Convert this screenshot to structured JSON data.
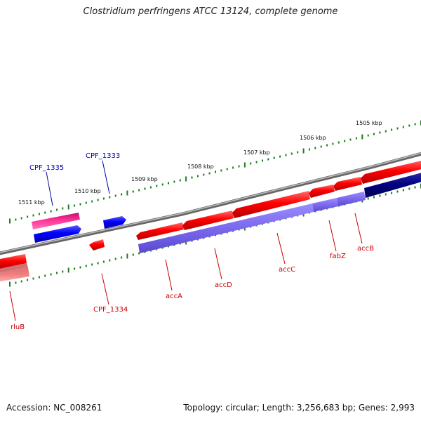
{
  "title": "Clostridium perfringens ATCC 13124, complete genome",
  "footer": {
    "accession": "Accession: NC_008261",
    "topology": "Topology: circular; Length: 3,256,683 bp; Genes: 2,993"
  },
  "colors": {
    "forward_gene": "#ff0000",
    "reverse_gene": "#0000ff",
    "highlight_gene": "#ff3399",
    "reverse_cds": "#7b68ee",
    "backbone": "#777777",
    "tick": "#1a7f1a",
    "forward_label": "#cc0000",
    "reverse_label": "#0000aa"
  },
  "kbp_ticks": [
    {
      "label": "1511 kbp",
      "pos": 1511
    },
    {
      "label": "1510 kbp",
      "pos": 1510
    },
    {
      "label": "1509 kbp",
      "pos": 1509
    },
    {
      "label": "1508 kbp",
      "pos": 1508
    },
    {
      "label": "1507 kbp",
      "pos": 1507
    },
    {
      "label": "1506 kbp",
      "pos": 1506
    },
    {
      "label": "1505 kbp",
      "pos": 1505
    }
  ],
  "gene_labels": [
    {
      "label": "CPF_1335",
      "kind": "reverse"
    },
    {
      "label": "CPF_1333",
      "kind": "reverse"
    },
    {
      "label": "CPF_1334",
      "kind": "forward"
    },
    {
      "label": "accA",
      "kind": "forward"
    },
    {
      "label": "accD",
      "kind": "forward"
    },
    {
      "label": "accC",
      "kind": "forward"
    },
    {
      "label": "fabZ",
      "kind": "forward"
    },
    {
      "label": "accB",
      "kind": "forward"
    },
    {
      "label": "rluB",
      "kind": "forward"
    }
  ]
}
